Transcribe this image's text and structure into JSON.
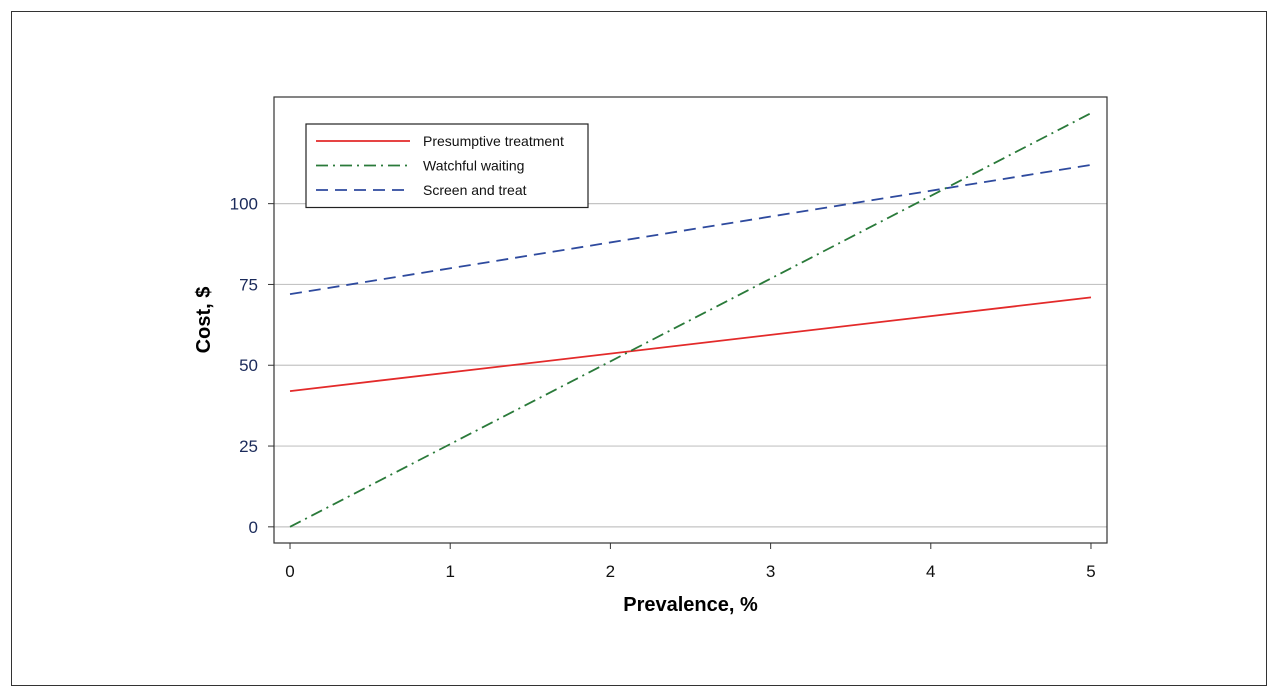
{
  "chart_data": {
    "type": "line",
    "title": "",
    "xlabel": "Prevalence, %",
    "ylabel": "Cost, $",
    "xlim": [
      -0.1,
      5.1
    ],
    "ylim": [
      -5,
      133
    ],
    "x_ticks": [
      "0",
      "1",
      "2",
      "3",
      "4",
      "5"
    ],
    "y_ticks": [
      "0",
      "25",
      "50",
      "75",
      "100"
    ],
    "x_tick_values": [
      0,
      1,
      2,
      3,
      4,
      5
    ],
    "y_tick_values": [
      0,
      25,
      50,
      75,
      100
    ],
    "grid": "horizontal",
    "legend_position": "top-left",
    "series": [
      {
        "name": "Presumptive treatment",
        "x": [
          0,
          5
        ],
        "y": [
          42,
          71
        ],
        "color": "#e32a2a",
        "dash": "solid"
      },
      {
        "name": "Watchful waiting",
        "x": [
          0,
          5
        ],
        "y": [
          0,
          128
        ],
        "color": "#2a7a3a",
        "dash": "dashdot"
      },
      {
        "name": "Screen and treat",
        "x": [
          0,
          5
        ],
        "y": [
          72,
          112
        ],
        "color": "#2e4a9e",
        "dash": "dashed"
      }
    ]
  }
}
